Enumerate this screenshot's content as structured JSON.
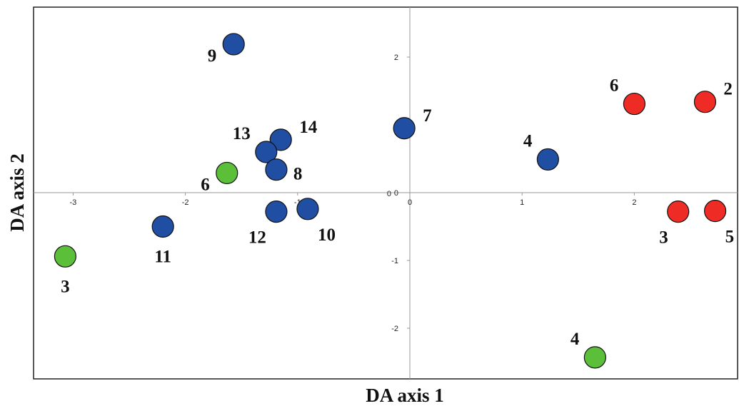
{
  "chart_data": {
    "type": "scatter",
    "title": "",
    "xlabel": "DA axis 1",
    "ylabel": "DA axis 2",
    "xlim": [
      -3.35,
      2.95
    ],
    "ylim": [
      -2.75,
      2.75
    ],
    "x_ticks": [
      -3,
      -2,
      -1,
      0,
      1,
      2
    ],
    "y_ticks": [
      -2,
      -1,
      0,
      1,
      2
    ],
    "x_tick_labels": [
      "-3",
      "-2",
      "-1",
      "0",
      "1",
      "2"
    ],
    "y_tick_labels": [
      "-2",
      "-1",
      "0",
      "1",
      "2"
    ],
    "grid": false,
    "legend": "none",
    "colors": {
      "blue": "#1f4ea3",
      "red": "#ee2b24",
      "green": "#5cbf3a",
      "outline": "#111111",
      "axis": "#999999",
      "frame": "#222222"
    },
    "series": [
      {
        "color": "blue",
        "points": [
          {
            "label": "9",
            "x": -1.57,
            "y": 2.19,
            "label_pos": "left"
          },
          {
            "label": "7",
            "x": -0.05,
            "y": 0.95,
            "label_pos": "upper-right"
          },
          {
            "label": "14",
            "x": -1.15,
            "y": 0.78,
            "label_pos": "upper-right"
          },
          {
            "label": "13",
            "x": -1.28,
            "y": 0.6,
            "label_pos": "upper-left"
          },
          {
            "label": "8",
            "x": -1.19,
            "y": 0.34,
            "label_pos": "right"
          },
          {
            "label": "4",
            "x": 1.23,
            "y": 0.49,
            "label_pos": "upper-left"
          },
          {
            "label": "12",
            "x": -1.19,
            "y": -0.28,
            "label_pos": "lower-left"
          },
          {
            "label": "10",
            "x": -0.91,
            "y": -0.24,
            "label_pos": "lower-right"
          },
          {
            "label": "11",
            "x": -2.2,
            "y": -0.5,
            "label_pos": "below"
          }
        ]
      },
      {
        "color": "red",
        "points": [
          {
            "label": "6",
            "x": 2.0,
            "y": 1.31,
            "label_pos": "upper-left"
          },
          {
            "label": "2",
            "x": 2.63,
            "y": 1.34,
            "label_pos": "upper-right"
          },
          {
            "label": "3",
            "x": 2.39,
            "y": -0.28,
            "label_pos": "lower-left"
          },
          {
            "label": "5",
            "x": 2.72,
            "y": -0.27,
            "label_pos": "lower-right"
          }
        ]
      },
      {
        "color": "green",
        "points": [
          {
            "label": "6",
            "x": -1.63,
            "y": 0.29,
            "label_pos": "left"
          },
          {
            "label": "3",
            "x": -3.07,
            "y": -0.94,
            "label_pos": "below"
          },
          {
            "label": "4",
            "x": 1.65,
            "y": -2.43,
            "label_pos": "upper-left"
          }
        ]
      }
    ]
  }
}
